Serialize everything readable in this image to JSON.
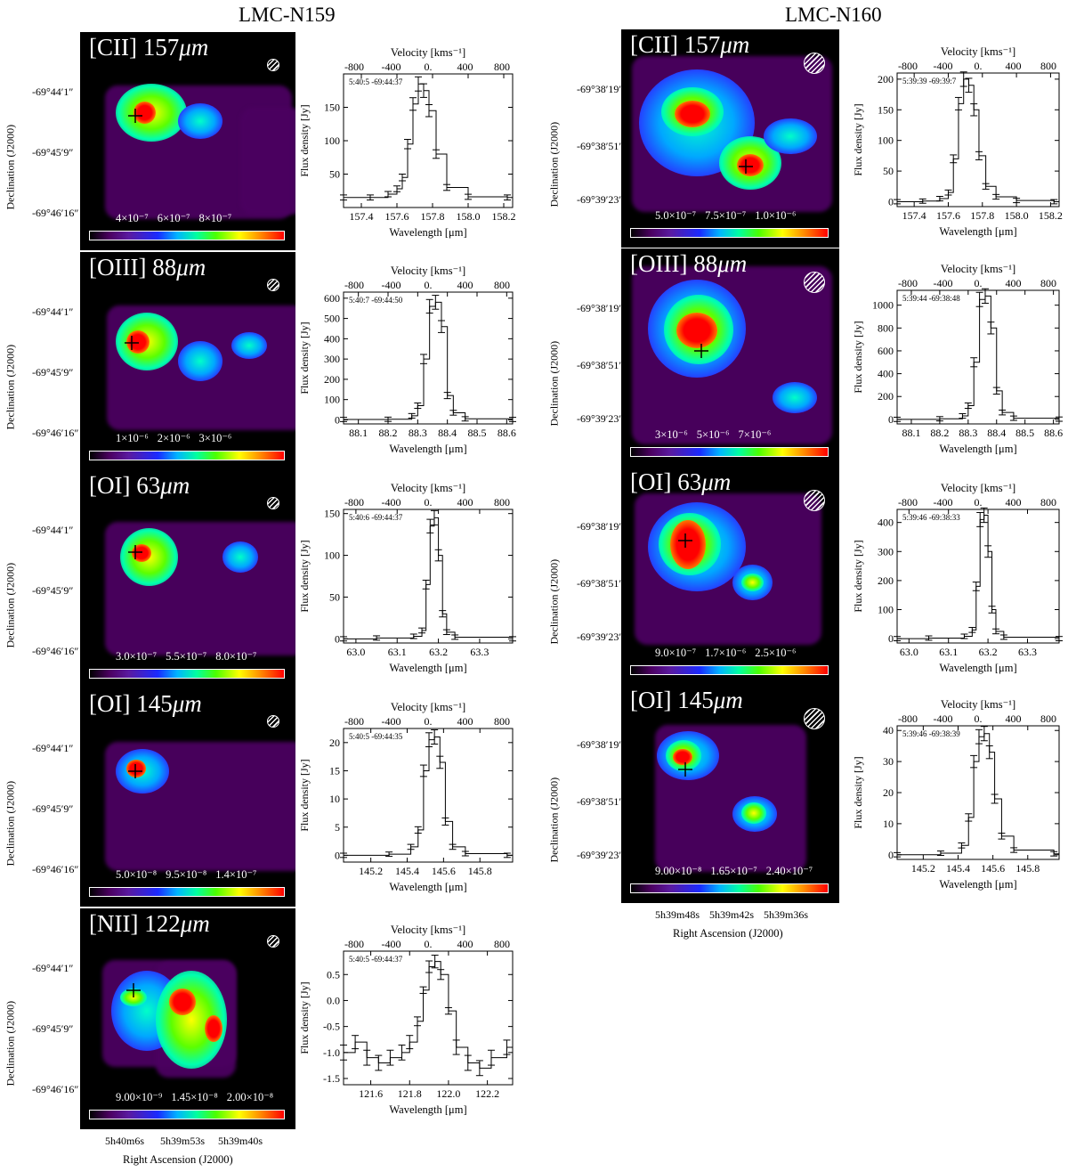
{
  "titles": {
    "left": "LMC-N159",
    "right": "LMC-N160"
  },
  "colors": {
    "panel_bg": "#000000",
    "emission_low": "#4b0060",
    "emission_mid": "#00ff80",
    "emission_peak": "#ff0000"
  },
  "common": {
    "dec_axis_title": "Declination (J2000)",
    "ra_axis_title": "Right Ascension (J2000)",
    "wavelength_label": "Wavelength [μm]",
    "flux_label": "Flux density [Jy]",
    "velocity_label": "Velocity [kms⁻¹]",
    "velocity_ticks": [
      "-800",
      "-400",
      "0.",
      "400",
      "800"
    ]
  },
  "n159": {
    "dec_ticks": [
      "-69°44′1″",
      "-69°45′9″",
      "-69°46′16″"
    ],
    "ra_ticks": [
      "5h40m6s",
      "5h39m53s",
      "5h39m40s"
    ],
    "panels": [
      {
        "line": "[CII] 157",
        "unit": "μm",
        "cbar": [
          "4×10⁻⁷",
          "6×10⁻⁷",
          "8×10⁻⁷"
        ]
      },
      {
        "line": "[OIII] 88",
        "unit": "μm",
        "cbar": [
          "1×10⁻⁶",
          "2×10⁻⁶",
          "3×10⁻⁶"
        ]
      },
      {
        "line": "[OI] 63",
        "unit": "μm",
        "cbar": [
          "3.0×10⁻⁷",
          "5.5×10⁻⁷",
          "8.0×10⁻⁷"
        ]
      },
      {
        "line": "[OI] 145",
        "unit": "μm",
        "cbar": [
          "5.0×10⁻⁸",
          "9.5×10⁻⁸",
          "1.4×10⁻⁷"
        ]
      },
      {
        "line": "[NII] 122",
        "unit": "μm",
        "cbar": [
          "9.00×10⁻⁹",
          "1.45×10⁻⁸",
          "2.00×10⁻⁸"
        ]
      }
    ]
  },
  "n160": {
    "dec_ticks": [
      "-69°38′19″",
      "-69°38′51″",
      "-69°39′23″"
    ],
    "ra_ticks": [
      "5h39m48s",
      "5h39m42s",
      "5h39m36s"
    ],
    "panels": [
      {
        "line": "[CII] 157",
        "unit": "μm",
        "cbar": [
          "5.0×10⁻⁷",
          "7.5×10⁻⁷",
          "1.0×10⁻⁶"
        ]
      },
      {
        "line": "[OIII] 88",
        "unit": "μm",
        "cbar": [
          "3×10⁻⁶",
          "5×10⁻⁶",
          "7×10⁻⁶"
        ]
      },
      {
        "line": "[OI] 63",
        "unit": "μm",
        "cbar": [
          "9.0×10⁻⁷",
          "1.7×10⁻⁶",
          "2.5×10⁻⁶"
        ]
      },
      {
        "line": "[OI] 145",
        "unit": "μm",
        "cbar": [
          "9.00×10⁻⁸",
          "1.65×10⁻⁷",
          "2.40×10⁻⁷"
        ]
      }
    ]
  },
  "chart_data": [
    {
      "type": "line",
      "id": "n159-cii",
      "annotation": "5:40:5 -69:44:37",
      "x": [
        157.3,
        157.45,
        157.55,
        157.6,
        157.63,
        157.66,
        157.69,
        157.72,
        157.75,
        157.78,
        157.82,
        157.88,
        158.0,
        158.22
      ],
      "y": [
        15,
        15,
        20,
        28,
        45,
        95,
        155,
        185,
        175,
        145,
        80,
        30,
        16,
        15
      ],
      "xlim": [
        157.3,
        158.25
      ],
      "ylim": [
        0,
        200
      ],
      "xticks": [
        157.4,
        157.6,
        157.8,
        158.0,
        158.2
      ],
      "xtick_labels": [
        "157.4",
        "157.6",
        "157.8",
        "158.0",
        "158.2"
      ],
      "yticks": [
        50,
        100,
        150
      ],
      "ytick_labels": [
        "50",
        "100",
        "150"
      ]
    },
    {
      "type": "line",
      "id": "n159-oiii",
      "annotation": "5:40:7 -69:44:50",
      "x": [
        88.05,
        88.2,
        88.28,
        88.3,
        88.32,
        88.34,
        88.36,
        88.38,
        88.4,
        88.42,
        88.46,
        88.62
      ],
      "y": [
        2,
        3,
        20,
        70,
        300,
        560,
        580,
        460,
        120,
        35,
        5,
        2
      ],
      "xlim": [
        88.05,
        88.62
      ],
      "ylim": [
        -20,
        630
      ],
      "xticks": [
        88.1,
        88.2,
        88.3,
        88.4,
        88.5,
        88.6
      ],
      "xtick_labels": [
        "88.1",
        "88.2",
        "88.3",
        "88.4",
        "88.5",
        "88.6"
      ],
      "yticks": [
        0,
        100,
        200,
        300,
        400,
        500,
        600
      ],
      "ytick_labels": [
        "0",
        "100",
        "200",
        "300",
        "400",
        "500",
        "600"
      ]
    },
    {
      "type": "line",
      "id": "n159-oi63",
      "annotation": "5:40:6 -69:44:37",
      "x": [
        62.97,
        63.05,
        63.14,
        63.16,
        63.17,
        63.18,
        63.19,
        63.2,
        63.21,
        63.22,
        63.24,
        63.38
      ],
      "y": [
        0,
        1,
        3,
        10,
        65,
        135,
        145,
        100,
        30,
        8,
        2,
        0
      ],
      "xlim": [
        62.97,
        63.38
      ],
      "ylim": [
        -5,
        155
      ],
      "xticks": [
        63.0,
        63.1,
        63.2,
        63.3
      ],
      "xtick_labels": [
        "63.0",
        "63.1",
        "63.2",
        "63.3"
      ],
      "yticks": [
        0,
        50,
        100,
        150
      ],
      "ytick_labels": [
        "0",
        "50",
        "100",
        "150"
      ]
    },
    {
      "type": "line",
      "id": "n159-oi145",
      "annotation": "5:40:5 -69:44:35",
      "x": [
        145.05,
        145.3,
        145.42,
        145.46,
        145.49,
        145.52,
        145.55,
        145.58,
        145.61,
        145.65,
        145.72,
        145.95
      ],
      "y": [
        0,
        0.2,
        1.5,
        4.5,
        15,
        20.5,
        21,
        16.5,
        6,
        1.5,
        0.3,
        0
      ],
      "xlim": [
        145.05,
        145.98
      ],
      "ylim": [
        -1.2,
        22.5
      ],
      "xticks": [
        145.2,
        145.4,
        145.6,
        145.8
      ],
      "xtick_labels": [
        "145.2",
        "145.4",
        "145.6",
        "145.8"
      ],
      "yticks": [
        0,
        5,
        10,
        15,
        20
      ],
      "ytick_labels": [
        "0",
        "5",
        "10",
        "15",
        "20"
      ]
    },
    {
      "type": "line",
      "id": "n159-nii",
      "annotation": "5:40:5 -69:44:37",
      "x": [
        121.46,
        121.52,
        121.58,
        121.64,
        121.7,
        121.76,
        121.8,
        121.84,
        121.87,
        121.9,
        121.93,
        121.96,
        122.0,
        122.04,
        122.1,
        122.16,
        122.22,
        122.3
      ],
      "y": [
        -1.0,
        -0.8,
        -1.1,
        -1.2,
        -1.1,
        -1.0,
        -0.8,
        -0.4,
        0.2,
        0.65,
        0.75,
        0.5,
        -0.2,
        -0.9,
        -1.2,
        -1.3,
        -1.1,
        -0.9
      ],
      "xlim": [
        121.46,
        122.33
      ],
      "ylim": [
        -1.62,
        0.95
      ],
      "xticks": [
        121.6,
        121.8,
        122.0,
        122.2
      ],
      "xtick_labels": [
        "121.6",
        "121.8",
        "122.0",
        "122.2"
      ],
      "yticks": [
        -1.5,
        -1.0,
        -0.5,
        0.0,
        0.5
      ],
      "ytick_labels": [
        "-1.5",
        "-1.0",
        "-0.5",
        "0.0",
        "0.5"
      ]
    },
    {
      "type": "line",
      "id": "n160-cii",
      "annotation": "5:39:39 -69:39:7",
      "x": [
        157.3,
        157.45,
        157.55,
        157.6,
        157.63,
        157.66,
        157.69,
        157.72,
        157.75,
        157.78,
        157.82,
        157.88,
        158.0,
        158.22
      ],
      "y": [
        0,
        1,
        5,
        15,
        70,
        160,
        200,
        190,
        150,
        75,
        25,
        8,
        2,
        0
      ],
      "xlim": [
        157.3,
        158.25
      ],
      "ylim": [
        -8,
        210
      ],
      "xticks": [
        157.4,
        157.6,
        157.8,
        158.0,
        158.2
      ],
      "xtick_labels": [
        "157.4",
        "157.6",
        "157.8",
        "158.0",
        "158.2"
      ],
      "yticks": [
        0,
        50,
        100,
        150,
        200
      ],
      "ytick_labels": [
        "0",
        "50",
        "100",
        "150",
        "200"
      ]
    },
    {
      "type": "line",
      "id": "n160-oiii",
      "annotation": "5:39:44 -69:38:48",
      "x": [
        88.05,
        88.2,
        88.28,
        88.3,
        88.32,
        88.34,
        88.36,
        88.38,
        88.4,
        88.42,
        88.46,
        88.62
      ],
      "y": [
        0,
        5,
        30,
        120,
        500,
        1050,
        1080,
        800,
        250,
        60,
        10,
        2
      ],
      "xlim": [
        88.05,
        88.62
      ],
      "ylim": [
        -40,
        1130
      ],
      "xticks": [
        88.1,
        88.2,
        88.3,
        88.4,
        88.5,
        88.6
      ],
      "xtick_labels": [
        "88.1",
        "88.2",
        "88.3",
        "88.4",
        "88.5",
        "88.6"
      ],
      "yticks": [
        0,
        200,
        400,
        600,
        800,
        1000
      ],
      "ytick_labels": [
        "0",
        "200",
        "400",
        "600",
        "800",
        "1000"
      ]
    },
    {
      "type": "line",
      "id": "n160-oi63",
      "annotation": "5:39:46 -69:38:33",
      "x": [
        62.97,
        63.05,
        63.14,
        63.16,
        63.17,
        63.18,
        63.19,
        63.2,
        63.21,
        63.22,
        63.24,
        63.38
      ],
      "y": [
        0,
        2,
        8,
        30,
        180,
        410,
        425,
        300,
        100,
        25,
        5,
        0
      ],
      "xlim": [
        62.97,
        63.38
      ],
      "ylim": [
        -15,
        445
      ],
      "xticks": [
        63.0,
        63.1,
        63.2,
        63.3
      ],
      "xtick_labels": [
        "63.0",
        "63.1",
        "63.2",
        "63.3"
      ],
      "yticks": [
        0,
        100,
        200,
        300,
        400
      ],
      "ytick_labels": [
        "0",
        "100",
        "200",
        "300",
        "400"
      ]
    },
    {
      "type": "line",
      "id": "n160-oi145",
      "annotation": "5:39:46 -69:38:39",
      "x": [
        145.05,
        145.3,
        145.42,
        145.46,
        145.49,
        145.52,
        145.55,
        145.58,
        145.61,
        145.65,
        145.72,
        145.95
      ],
      "y": [
        0,
        0.5,
        3,
        12,
        30,
        38,
        39,
        33,
        18,
        6,
        1.5,
        0.3
      ],
      "xlim": [
        145.05,
        145.98
      ],
      "ylim": [
        -1.5,
        41.5
      ],
      "xticks": [
        145.2,
        145.4,
        145.6,
        145.8
      ],
      "xtick_labels": [
        "145.2",
        "145.4",
        "145.6",
        "145.8"
      ],
      "yticks": [
        0,
        10,
        20,
        30,
        40
      ],
      "ytick_labels": [
        "0",
        "10",
        "20",
        "30",
        "40"
      ]
    }
  ]
}
